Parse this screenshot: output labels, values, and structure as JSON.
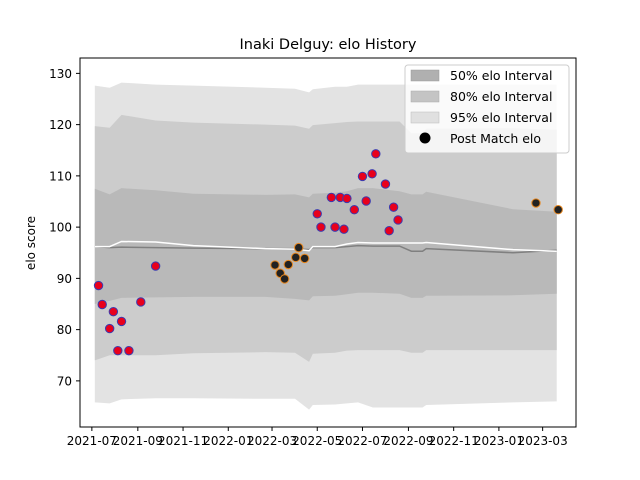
{
  "chart_data": {
    "type": "scatter",
    "title": "Inaki Delguy: elo History",
    "xlabel": "",
    "ylabel": "elo score",
    "xlim": [
      "2021-06-15",
      "2023-04-15"
    ],
    "ylim": [
      61,
      133
    ],
    "x_ticks": [
      "2021-07",
      "2021-09",
      "2021-11",
      "2022-01",
      "2022-03",
      "2022-05",
      "2022-07",
      "2022-09",
      "2022-11",
      "2023-01",
      "2023-03"
    ],
    "y_ticks": [
      70,
      80,
      90,
      100,
      110,
      120,
      130
    ],
    "legend": {
      "position": "top-right",
      "entries": [
        "50% elo Interval",
        "80% elo Interval",
        "95% elo Interval",
        "Post Match elo"
      ]
    },
    "band_dates": [
      "2021-07-05",
      "2021-07-25",
      "2021-08-10",
      "2021-09-25",
      "2021-11-15",
      "2022-02-20",
      "2022-04-01",
      "2022-04-20",
      "2022-04-25",
      "2022-05-25",
      "2022-06-10",
      "2022-06-25",
      "2022-07-15",
      "2022-08-20",
      "2022-09-05",
      "2022-09-20",
      "2022-09-25",
      "2023-01-20",
      "2023-03-20"
    ],
    "center_line": [
      96.2,
      96.0,
      96.1,
      96.0,
      95.9,
      95.8,
      95.8,
      95.6,
      96.0,
      96.0,
      96.2,
      96.4,
      96.3,
      96.3,
      95.3,
      95.3,
      95.8,
      95.0,
      95.5
    ],
    "interval_50": {
      "lower": [
        85.0,
        85.6,
        86.2,
        86.3,
        86.4,
        86.4,
        86.0,
        85.7,
        86.5,
        86.6,
        86.9,
        87.2,
        87.2,
        87.0,
        86.2,
        86.2,
        86.6,
        86.7,
        87.0
      ],
      "upper": [
        107.5,
        106.4,
        107.6,
        107.2,
        106.5,
        106.3,
        106.4,
        105.8,
        106.5,
        106.7,
        107.0,
        107.6,
        107.6,
        107.0,
        106.4,
        106.4,
        106.9,
        103.5,
        103.0
      ]
    },
    "interval_80": {
      "lower": [
        74.0,
        75.0,
        75.0,
        75.0,
        75.4,
        75.6,
        75.5,
        73.7,
        75.3,
        75.5,
        75.9,
        76.0,
        76.0,
        76.0,
        75.5,
        75.5,
        76.0,
        76.0,
        76.0
      ]
    },
    "interval_95_upper_80": {
      "upper": [
        119.7,
        119.4,
        121.9,
        120.8,
        120.4,
        120.0,
        119.8,
        119.2,
        119.9,
        120.3,
        120.5,
        120.6,
        120.6,
        120.6,
        118.3,
        118.3,
        119.2,
        119.3,
        119.0
      ]
    },
    "interval_95": {
      "lower": [
        65.8,
        65.6,
        66.4,
        66.6,
        66.6,
        66.5,
        66.5,
        64.4,
        65.3,
        65.4,
        65.6,
        65.8,
        64.8,
        64.8,
        64.8,
        64.8,
        65.3,
        65.8,
        66.0
      ],
      "upper": [
        127.6,
        127.2,
        128.2,
        127.8,
        127.6,
        127.2,
        127.0,
        126.3,
        126.9,
        127.4,
        127.4,
        127.8,
        127.8,
        127.8,
        127.8,
        127.8,
        127.8,
        127.8,
        127.8
      ]
    },
    "mean_line_white": [
      96.2,
      96.2,
      97.2,
      97.1,
      96.4,
      95.8,
      95.7,
      95.4,
      96.2,
      96.2,
      96.7,
      97.0,
      96.9,
      96.9,
      96.9,
      96.9,
      97.0,
      95.6,
      95.3
    ],
    "points": [
      {
        "x": "2021-07-10",
        "y": 88.6,
        "color": "#e8001c"
      },
      {
        "x": "2021-07-15",
        "y": 84.9,
        "color": "#e8001c"
      },
      {
        "x": "2021-07-25",
        "y": 80.2,
        "color": "#e8001c"
      },
      {
        "x": "2021-07-30",
        "y": 83.5,
        "color": "#e8001c"
      },
      {
        "x": "2021-08-05",
        "y": 75.9,
        "color": "#e8001c"
      },
      {
        "x": "2021-08-10",
        "y": 81.6,
        "color": "#e8001c"
      },
      {
        "x": "2021-08-20",
        "y": 75.9,
        "color": "#e8001c"
      },
      {
        "x": "2021-09-05",
        "y": 85.4,
        "color": "#e8001c"
      },
      {
        "x": "2021-09-25",
        "y": 92.4,
        "color": "#e8001c"
      },
      {
        "x": "2022-03-05",
        "y": 92.6,
        "color": "#222222"
      },
      {
        "x": "2022-03-12",
        "y": 91.0,
        "color": "#222222"
      },
      {
        "x": "2022-03-18",
        "y": 89.9,
        "color": "#222222"
      },
      {
        "x": "2022-03-23",
        "y": 92.7,
        "color": "#222222"
      },
      {
        "x": "2022-04-02",
        "y": 94.1,
        "color": "#222222"
      },
      {
        "x": "2022-04-06",
        "y": 96.0,
        "color": "#222222"
      },
      {
        "x": "2022-04-14",
        "y": 93.9,
        "color": "#222222"
      },
      {
        "x": "2022-05-01",
        "y": 102.6,
        "color": "#e8001c"
      },
      {
        "x": "2022-05-06",
        "y": 100.0,
        "color": "#e8001c"
      },
      {
        "x": "2022-05-20",
        "y": 105.8,
        "color": "#e8001c"
      },
      {
        "x": "2022-05-25",
        "y": 100.0,
        "color": "#e8001c"
      },
      {
        "x": "2022-06-01",
        "y": 105.8,
        "color": "#e8001c"
      },
      {
        "x": "2022-06-06",
        "y": 99.6,
        "color": "#e8001c"
      },
      {
        "x": "2022-06-10",
        "y": 105.6,
        "color": "#e8001c"
      },
      {
        "x": "2022-06-20",
        "y": 103.4,
        "color": "#e8001c"
      },
      {
        "x": "2022-07-01",
        "y": 109.9,
        "color": "#e8001c"
      },
      {
        "x": "2022-07-06",
        "y": 105.1,
        "color": "#e8001c"
      },
      {
        "x": "2022-07-14",
        "y": 110.4,
        "color": "#e8001c"
      },
      {
        "x": "2022-07-19",
        "y": 114.3,
        "color": "#e8001c"
      },
      {
        "x": "2022-08-01",
        "y": 108.4,
        "color": "#e8001c"
      },
      {
        "x": "2022-08-06",
        "y": 99.3,
        "color": "#e8001c"
      },
      {
        "x": "2022-08-12",
        "y": 103.9,
        "color": "#e8001c"
      },
      {
        "x": "2022-08-18",
        "y": 101.4,
        "color": "#e8001c"
      },
      {
        "x": "2023-02-20",
        "y": 104.7,
        "color": "#222222"
      },
      {
        "x": "2023-03-22",
        "y": 103.4,
        "color": "#222222"
      }
    ]
  },
  "colors": {
    "band_95": "#e3e3e3",
    "band_80": "#cccccc",
    "band_50": "#b9b9b9",
    "center_line": "#808080",
    "mean_line": "#ffffff",
    "point_edge_red": "#3b3bb0",
    "point_edge_dark": "#e8871e"
  }
}
